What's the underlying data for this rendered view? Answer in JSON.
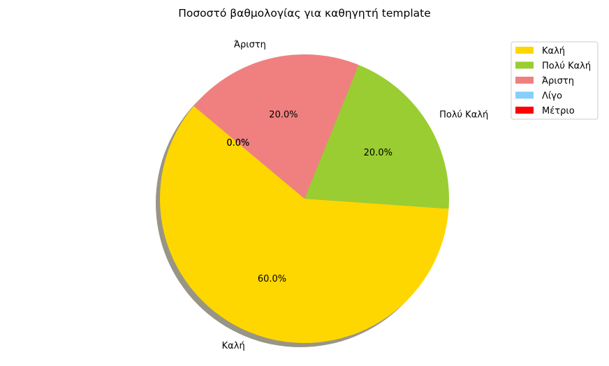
{
  "chart_data": {
    "type": "pie",
    "title": "Ποσοστό βαθμολογίας για καθηγητή template",
    "categories": [
      "Καλή",
      "Πολύ Καλή",
      "Άριστη",
      "Λίγο",
      "Μέτριο"
    ],
    "values": [
      60.0,
      20.0,
      20.0,
      0.0,
      0.0
    ],
    "percent_labels": [
      "60.0%",
      "20.0%",
      "20.0%",
      "0.0%",
      "0.0%"
    ],
    "colors": [
      "#FFD700",
      "#9ACD32",
      "#F08080",
      "#87CEFA",
      "#FF0000"
    ],
    "shadow": true,
    "legend_position": "top-right"
  }
}
